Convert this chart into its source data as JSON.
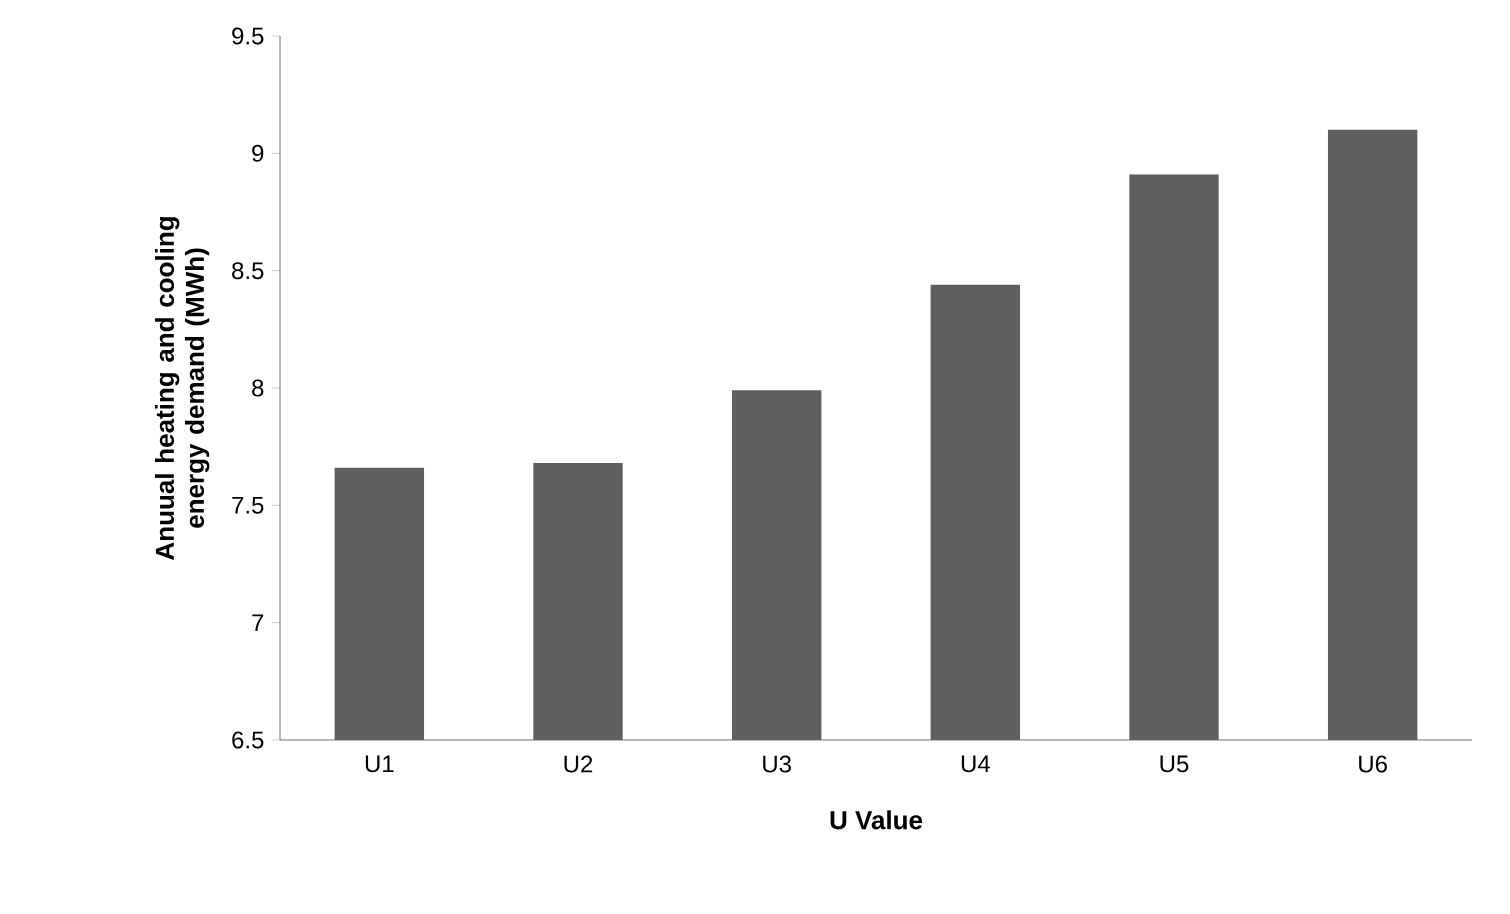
{
  "chart_data": {
    "type": "bar",
    "xlabel": "U  Value",
    "ylabel": "Anuual heating and cooling energy demand (MWh)",
    "categories": [
      "U1",
      "U2",
      "U3",
      "U4",
      "U5",
      "U6"
    ],
    "values": [
      7.66,
      7.68,
      7.99,
      8.44,
      8.91,
      9.1
    ],
    "color": "#5f5f5f",
    "ylim": [
      6.5,
      9.5
    ],
    "yticks": [
      6.5,
      7,
      7.5,
      8,
      8.5,
      9,
      9.5
    ],
    "grid": false
  }
}
